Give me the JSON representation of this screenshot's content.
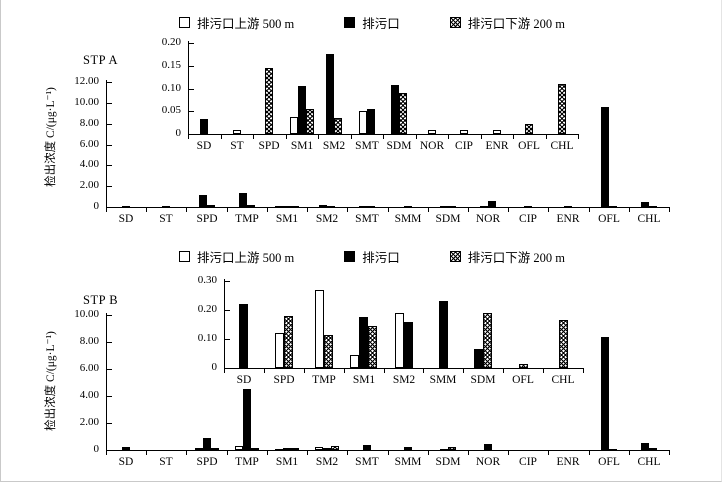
{
  "page": {
    "background": "#ffffff",
    "ink": "#000000"
  },
  "legend": {
    "items": [
      {
        "label": "排污口上游 500 m",
        "style": "open"
      },
      {
        "label": "排污口",
        "style": "solid"
      },
      {
        "label": "排污口下游 200 m",
        "style": "hatch"
      }
    ]
  },
  "chart_data": [
    {
      "id": "stp-a-main",
      "type": "bar",
      "title": "STP A",
      "ylabel": "检出浓度 C/(μg·L⁻¹)",
      "ylim": [
        0,
        12
      ],
      "yticks": [
        "12.00",
        "10.00",
        "8.00",
        "6.00",
        "4.00",
        "2.00",
        "0"
      ],
      "ytick_values": [
        12,
        10,
        8,
        6,
        4,
        2,
        0
      ],
      "grid": false,
      "legend_position": "top-center",
      "categories": [
        "SD",
        "ST",
        "SPD",
        "TMP",
        "SM1",
        "SM2",
        "SMT",
        "SMM",
        "SDM",
        "NOR",
        "CIP",
        "ENR",
        "OFL",
        "CHL"
      ],
      "series": [
        {
          "name": "排污口上游 500 m",
          "style": "open",
          "values": [
            0,
            0.01,
            0,
            0,
            0.04,
            0,
            0.05,
            0,
            0,
            0.01,
            0.01,
            0.01,
            0,
            0
          ]
        },
        {
          "name": "排污口",
          "style": "solid",
          "values": [
            0.03,
            0,
            1.2,
            1.3,
            0.11,
            0.18,
            0.06,
            0.03,
            0.11,
            0.55,
            0,
            0,
            9.6,
            0.45
          ]
        },
        {
          "name": "排污口下游 200 m",
          "style": "hatch",
          "values": [
            0,
            0,
            0.15,
            0.2,
            0.06,
            0.04,
            0,
            0,
            0.09,
            0,
            0,
            0,
            0.02,
            0.11
          ]
        }
      ]
    },
    {
      "id": "stp-a-inset",
      "type": "bar",
      "title": "",
      "ylabel": "",
      "ylim": [
        0,
        0.2
      ],
      "yticks": [
        "0.20",
        "0.15",
        "0.10",
        "0.05",
        "0"
      ],
      "ytick_values": [
        0.2,
        0.15,
        0.1,
        0.05,
        0
      ],
      "grid": false,
      "legend_position": "none",
      "categories": [
        "SD",
        "ST",
        "SPD",
        "SM1",
        "SM2",
        "SMT",
        "SDM",
        "NOR",
        "CIP",
        "ENR",
        "OFL",
        "CHL"
      ],
      "series": [
        {
          "name": "排污口上游 500 m",
          "style": "open",
          "values": [
            0,
            0.008,
            0,
            0.038,
            0,
            0.05,
            0,
            0.008,
            0.008,
            0.008,
            0,
            0
          ]
        },
        {
          "name": "排污口",
          "style": "solid",
          "values": [
            0.033,
            0,
            0,
            0.105,
            0.175,
            0.055,
            0.108,
            0,
            0,
            0,
            0,
            0
          ]
        },
        {
          "name": "排污口下游 200 m",
          "style": "hatch",
          "values": [
            0,
            0,
            0.145,
            0.055,
            0.036,
            0,
            0.09,
            0,
            0,
            0,
            0.022,
            0.11
          ]
        }
      ]
    },
    {
      "id": "stp-b-main",
      "type": "bar",
      "title": "STP B",
      "ylabel": "检出浓度 C/(μg·L⁻¹)",
      "ylim": [
        0,
        10
      ],
      "yticks": [
        "10.00",
        "8.00",
        "6.00",
        "4.00",
        "2.00",
        "0"
      ],
      "ytick_values": [
        10,
        8,
        6,
        4,
        2,
        0
      ],
      "grid": false,
      "legend_position": "top-center",
      "categories": [
        "SD",
        "ST",
        "SPD",
        "TMP",
        "SM1",
        "SM2",
        "SMT",
        "SMM",
        "SDM",
        "NOR",
        "CIP",
        "ENR",
        "OFL",
        "CHL"
      ],
      "series": [
        {
          "name": "排污口上游 500 m",
          "style": "open",
          "values": [
            0,
            0,
            0.12,
            0.27,
            0.05,
            0.19,
            0,
            0,
            0,
            0,
            0,
            0,
            0,
            0
          ]
        },
        {
          "name": "排污口",
          "style": "solid",
          "values": [
            0.25,
            0,
            0.9,
            4.5,
            0.18,
            0.16,
            0.35,
            0.23,
            0.07,
            0.45,
            0,
            0,
            8.4,
            0.5
          ]
        },
        {
          "name": "排污口下游 200 m",
          "style": "hatch",
          "values": [
            0,
            0,
            0.18,
            0.12,
            0.15,
            0.3,
            0,
            0,
            0.19,
            0,
            0,
            0,
            0.05,
            0.17
          ]
        }
      ]
    },
    {
      "id": "stp-b-inset",
      "type": "bar",
      "title": "",
      "ylabel": "",
      "ylim": [
        0,
        0.3
      ],
      "yticks": [
        "0.30",
        "0.20",
        "0.10",
        "0"
      ],
      "ytick_values": [
        0.3,
        0.2,
        0.1,
        0
      ],
      "grid": false,
      "legend_position": "none",
      "categories": [
        "SD",
        "SPD",
        "TMP",
        "SM1",
        "SM2",
        "SMM",
        "SDM",
        "OFL",
        "CHL"
      ],
      "series": [
        {
          "name": "排污口上游 500 m",
          "style": "open",
          "values": [
            0,
            0.12,
            0.27,
            0.045,
            0.19,
            0,
            0,
            0,
            0
          ]
        },
        {
          "name": "排污口",
          "style": "solid",
          "values": [
            0.22,
            0,
            0,
            0.175,
            0.16,
            0.23,
            0.065,
            0,
            0
          ]
        },
        {
          "name": "排污口下游 200 m",
          "style": "hatch",
          "values": [
            0,
            0.18,
            0.115,
            0.145,
            0,
            0,
            0.19,
            0.015,
            0.165
          ]
        }
      ]
    }
  ]
}
